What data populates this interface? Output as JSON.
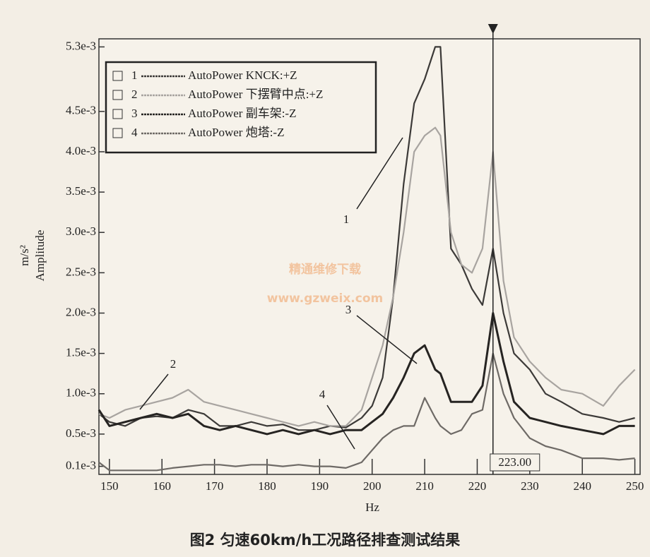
{
  "chart_data": {
    "type": "line",
    "x_label": "Hz",
    "y_label": "Amplitude",
    "y_unit": "m/s²",
    "caption": "图2  匀速60km/h工况路径排查测试结果",
    "watermark": [
      "精通维修下载",
      "www.gzweix.com"
    ],
    "annotations": [
      "1",
      "2",
      "3",
      "4"
    ],
    "cursor": {
      "value": 223,
      "label": "223.00"
    },
    "xlim": [
      148,
      251
    ],
    "xticks": [
      150,
      160,
      170,
      180,
      190,
      200,
      210,
      220,
      230,
      240,
      250
    ],
    "ylim": [
      0,
      0.0054
    ],
    "yticks": [
      {
        "value": 0.0001,
        "label": "0.1e-3"
      },
      {
        "value": 0.0005,
        "label": "0.5e-3"
      },
      {
        "value": 0.001,
        "label": "1.0e-3"
      },
      {
        "value": 0.0015,
        "label": "1.5e-3"
      },
      {
        "value": 0.002,
        "label": "2.0e-3"
      },
      {
        "value": 0.0025,
        "label": "2.5e-3"
      },
      {
        "value": 0.003,
        "label": "3.0e-3"
      },
      {
        "value": 0.0035,
        "label": "3.5e-3"
      },
      {
        "value": 0.004,
        "label": "4.0e-3"
      },
      {
        "value": 0.0045,
        "label": "4.5e-3"
      },
      {
        "value": 0.0053,
        "label": "5.3e-3"
      }
    ],
    "x": [
      148,
      150,
      153,
      156,
      159,
      162,
      165,
      168,
      171,
      174,
      177,
      180,
      183,
      186,
      189,
      192,
      195,
      198,
      200,
      202,
      204,
      206,
      208,
      210,
      212,
      213,
      215,
      217,
      219,
      221,
      223,
      225,
      227,
      230,
      233,
      236,
      240,
      244,
      247,
      250
    ],
    "series": [
      {
        "id": "1",
        "name": "AutoPower KNCK:+Z",
        "color": "#3c3a38",
        "values": [
          0.00075,
          0.00065,
          0.0006,
          0.0007,
          0.00072,
          0.0007,
          0.0008,
          0.00075,
          0.0006,
          0.0006,
          0.00065,
          0.0006,
          0.00062,
          0.00055,
          0.00055,
          0.0006,
          0.00058,
          0.0007,
          0.00085,
          0.0012,
          0.0022,
          0.0036,
          0.0046,
          0.0049,
          0.0053,
          0.0053,
          0.0028,
          0.0026,
          0.0023,
          0.0021,
          0.0028,
          0.002,
          0.0015,
          0.0013,
          0.001,
          0.0009,
          0.00075,
          0.0007,
          0.00065,
          0.0007
        ]
      },
      {
        "id": "2",
        "name": "AutoPower 下摆臂中点:+Z",
        "color": "#a8a4a0",
        "values": [
          0.00075,
          0.0007,
          0.0008,
          0.00085,
          0.0009,
          0.00095,
          0.00105,
          0.0009,
          0.00085,
          0.0008,
          0.00075,
          0.0007,
          0.00065,
          0.0006,
          0.00065,
          0.0006,
          0.0006,
          0.0008,
          0.0012,
          0.0016,
          0.0022,
          0.003,
          0.004,
          0.0042,
          0.0043,
          0.0042,
          0.003,
          0.0026,
          0.0025,
          0.0028,
          0.004,
          0.0024,
          0.0017,
          0.0014,
          0.0012,
          0.00105,
          0.001,
          0.00085,
          0.0011,
          0.0013
        ]
      },
      {
        "id": "3",
        "name": "AutoPower 副车架:-Z",
        "color": "#262422",
        "values": [
          0.0008,
          0.0006,
          0.00065,
          0.0007,
          0.00075,
          0.0007,
          0.00075,
          0.0006,
          0.00055,
          0.0006,
          0.00055,
          0.0005,
          0.00055,
          0.0005,
          0.00055,
          0.0005,
          0.00055,
          0.00055,
          0.00065,
          0.00075,
          0.00095,
          0.0012,
          0.0015,
          0.0016,
          0.0013,
          0.00125,
          0.0009,
          0.0009,
          0.0009,
          0.0011,
          0.002,
          0.0014,
          0.0009,
          0.0007,
          0.00065,
          0.0006,
          0.00055,
          0.0005,
          0.0006,
          0.0006
        ]
      },
      {
        "id": "4",
        "name": "AutoPower 炮塔:-Z",
        "color": "#6e6a66",
        "values": [
          0.00015,
          5e-05,
          5e-05,
          5e-05,
          5e-05,
          8e-05,
          0.0001,
          0.00012,
          0.00012,
          0.0001,
          0.00012,
          0.00012,
          0.0001,
          0.00012,
          0.0001,
          0.0001,
          8e-05,
          0.00015,
          0.0003,
          0.00045,
          0.00055,
          0.0006,
          0.0006,
          0.00095,
          0.0007,
          0.0006,
          0.0005,
          0.00055,
          0.00075,
          0.0008,
          0.0015,
          0.001,
          0.0007,
          0.00045,
          0.00035,
          0.0003,
          0.0002,
          0.0002,
          0.00018,
          0.0002
        ]
      }
    ]
  }
}
